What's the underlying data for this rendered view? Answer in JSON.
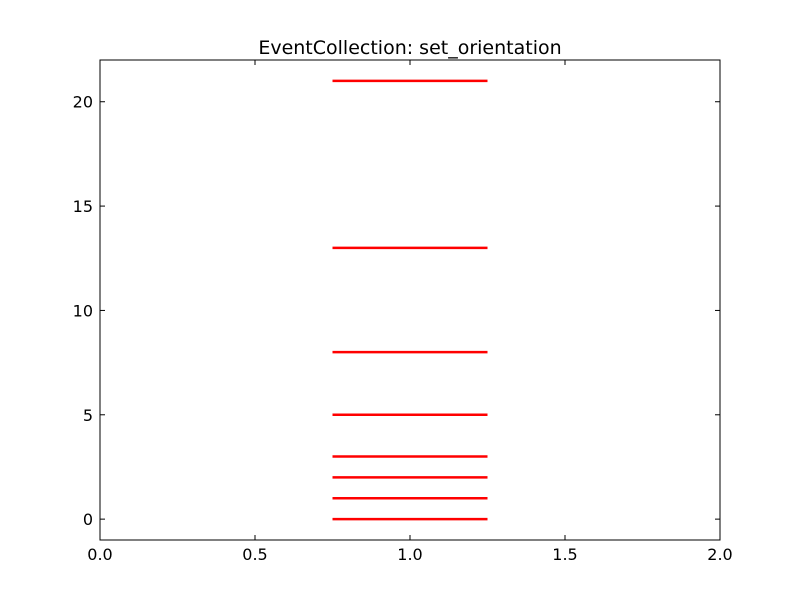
{
  "chart_data": {
    "type": "eventplot",
    "title": "EventCollection: set_orientation",
    "xlabel": "",
    "ylabel": "",
    "xlim": [
      0.0,
      2.0
    ],
    "ylim": [
      -1,
      22
    ],
    "orientation": "vertical",
    "line_offset": 1.0,
    "line_length": 0.5,
    "events": [
      0,
      1,
      2,
      3,
      5,
      8,
      13,
      21
    ],
    "color": "#ff0000",
    "grid": false,
    "xticks": [
      0.0,
      0.5,
      1.0,
      1.5,
      2.0
    ],
    "xtick_labels": [
      "0.0",
      "0.5",
      "1.0",
      "1.5",
      "2.0"
    ],
    "yticks": [
      0,
      5,
      10,
      15,
      20
    ],
    "ytick_labels": [
      "0",
      "5",
      "10",
      "15",
      "20"
    ]
  }
}
